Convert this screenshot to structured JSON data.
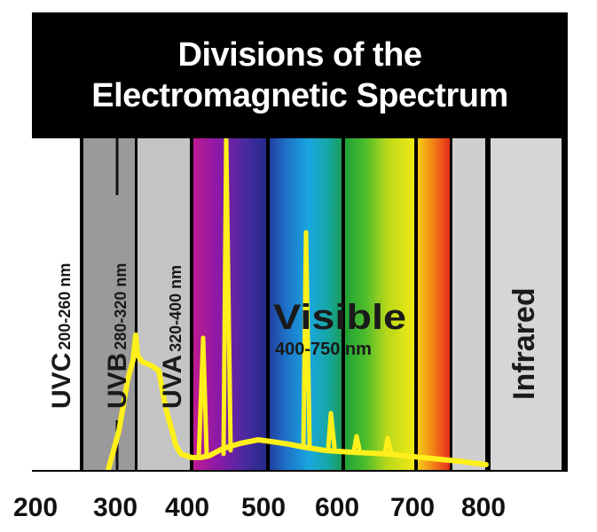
{
  "title": {
    "line1": "Divisions of the",
    "line2": "Electromagnetic Spectrum"
  },
  "bands": {
    "uvc": {
      "name": "UVC",
      "range": "200-260 nm"
    },
    "uvb": {
      "name": "UVB",
      "range": "280-320 nm"
    },
    "uva": {
      "name": "UVA",
      "range": "320-400 nm"
    },
    "visible": {
      "name": "Visible",
      "range": "400-750 nm"
    },
    "infrared": {
      "name": "Infrared"
    }
  },
  "axis": {
    "ticks": [
      "200",
      "300",
      "400",
      "500",
      "600",
      "700",
      "800"
    ]
  },
  "colors": {
    "frame": "#000000",
    "uvc": "#ffffff",
    "uvb": "#9a9a9a",
    "uva": "#c4c4c4",
    "infrared": "#d6d6d6",
    "emission_line": "#ffef1a"
  }
}
